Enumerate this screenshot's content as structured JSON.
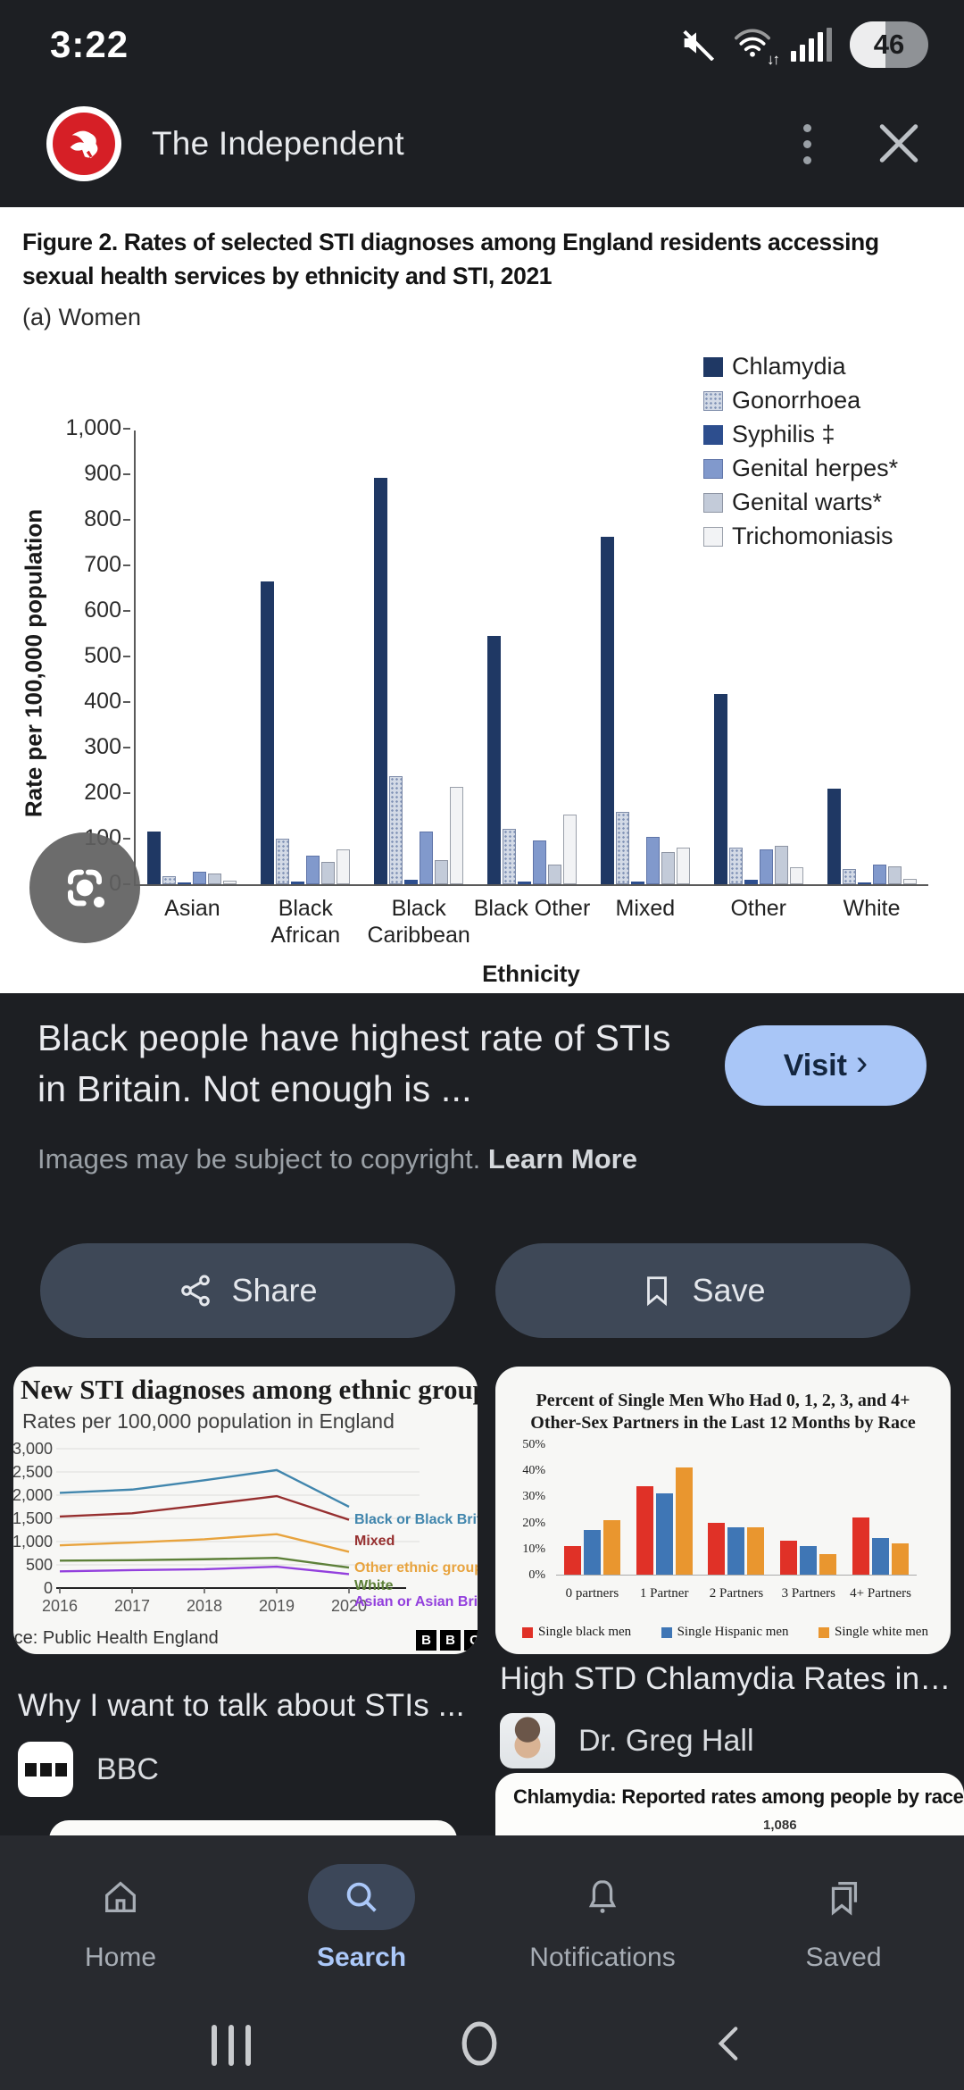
{
  "status_bar": {
    "time": "3:22",
    "battery_percent": "46"
  },
  "header": {
    "title": "The Independent"
  },
  "figure": {
    "title": "Figure 2. Rates of selected STI diagnoses among England residents accessing sexual health services by ethnicity and STI, 2021",
    "subtitle": "(a) Women"
  },
  "result": {
    "headline": "Black people have highest rate of STIs in Britain. Not enough is ...",
    "visit_label": "Visit",
    "visit_chevron": "›",
    "copyright_text": "Images may be subject to copyright. ",
    "learn_more_label": "Learn More",
    "share_label": "Share",
    "save_label": "Save"
  },
  "related": {
    "left_caption": "Why I want to talk about STIs ...",
    "left_source": "BBC",
    "right_caption": "High STD Chlamydia Rates in…",
    "right_author": "Dr. Greg Hall"
  },
  "bottom_nav": {
    "items": [
      {
        "label": "Home",
        "icon": "home-icon",
        "active": false
      },
      {
        "label": "Search",
        "icon": "search-icon",
        "active": true
      },
      {
        "label": "Notifications",
        "icon": "bell-icon",
        "active": false
      },
      {
        "label": "Saved",
        "icon": "bookmark-stack-icon",
        "active": false
      }
    ]
  },
  "chart_data": [
    {
      "id": "sti_rates_by_ethnicity",
      "type": "bar",
      "title": "Figure 2. Rates of selected STI diagnoses among England residents accessing sexual health services by ethnicity and STI, 2021",
      "subtitle": "(a) Women",
      "xlabel": "Ethnicity",
      "ylabel": "Rate per 100,000 population",
      "ylim": [
        0,
        1000
      ],
      "ytick_step": 100,
      "grid": false,
      "legend_position": "top-right",
      "categories": [
        "Asian",
        "Black\nAfrican",
        "Black\nCaribbean",
        "Black Other",
        "Mixed",
        "Other",
        "White"
      ],
      "series": [
        {
          "name": "Chlamydia",
          "color": "#1f3864",
          "values": [
            115,
            665,
            893,
            545,
            763,
            418,
            210
          ]
        },
        {
          "name": "Gonorrhoea",
          "color": "#d3dae6",
          "pattern": "dots",
          "border": "#7f8daa",
          "values": [
            18,
            100,
            237,
            122,
            158,
            80,
            33
          ]
        },
        {
          "name": "Syphilis ‡",
          "color": "#2d4e8e",
          "values": [
            3,
            6,
            9,
            6,
            6,
            10,
            3
          ]
        },
        {
          "name": "Genital herpes*",
          "color": "#8199cc",
          "border": "#5f74a8",
          "values": [
            27,
            62,
            116,
            96,
            103,
            76,
            44
          ]
        },
        {
          "name": "Genital warts*",
          "color": "#c3cbd9",
          "border": "#8d94a3",
          "values": [
            23,
            50,
            52,
            44,
            70,
            84,
            40
          ]
        },
        {
          "name": "Trichomoniasis",
          "color": "#f2f3f5",
          "border": "#9aa0aa",
          "values": [
            8,
            76,
            213,
            153,
            80,
            37,
            12
          ]
        }
      ]
    },
    {
      "id": "bbc_new_sti_diagnoses",
      "type": "line",
      "title": "New STI diagnoses among ethnic groups",
      "subtitle": "Rates per 100,000 population in England",
      "source": "rce: Public Health England",
      "x": [
        2016,
        2017,
        2018,
        2019,
        2020
      ],
      "ylim": [
        0,
        3000
      ],
      "yticks": [
        0,
        500,
        1000,
        1500,
        2000,
        2500,
        3000
      ],
      "grid": true,
      "legend_position": "right-of-line-ends",
      "series": [
        {
          "name": "Black or Black British",
          "color": "#4186ad",
          "values": [
            2050,
            2120,
            2320,
            2540,
            1750
          ]
        },
        {
          "name": "Mixed",
          "color": "#962f2f",
          "values": [
            1540,
            1610,
            1790,
            1980,
            1470
          ]
        },
        {
          "name": "Other ethnic groups",
          "color": "#e8a33d",
          "values": [
            920,
            980,
            1050,
            1160,
            780
          ]
        },
        {
          "name": "White",
          "color": "#5d8039",
          "values": [
            590,
            600,
            620,
            650,
            440
          ]
        },
        {
          "name": "Asian or Asian British",
          "color": "#9340dd",
          "values": [
            360,
            385,
            405,
            460,
            300
          ]
        }
      ]
    },
    {
      "id": "single_men_partners",
      "type": "bar",
      "title": "Percent of Single Men Who Had 0, 1, 2, 3, and 4+ Other-Sex Partners in the Last 12 Months by Race",
      "ylim": [
        0,
        50
      ],
      "ytick_step": 10,
      "ytick_suffix": "%",
      "grid": false,
      "legend_position": "bottom",
      "categories": [
        "0 partners",
        "1 Partner",
        "2 Partners",
        "3 Partners",
        "4+ Partners"
      ],
      "series": [
        {
          "name": "Single black men",
          "color": "#e03127",
          "values": [
            11,
            34,
            20,
            13,
            22
          ]
        },
        {
          "name": "Single Hispanic men",
          "color": "#3f76b5",
          "values": [
            17,
            31,
            18,
            11,
            14
          ]
        },
        {
          "name": "Single white men",
          "color": "#e9962f",
          "values": [
            21,
            41,
            18,
            8,
            12
          ]
        }
      ]
    },
    {
      "id": "chlamydia_reported_rates",
      "type": "bar",
      "title": "Chlamydia: Reported rates among people by race/ethnicity",
      "visible_values": [
        "1,086"
      ],
      "bar_color": "#7d3f98",
      "layout_note": "partially visible, cropped by bottom navigation"
    }
  ]
}
